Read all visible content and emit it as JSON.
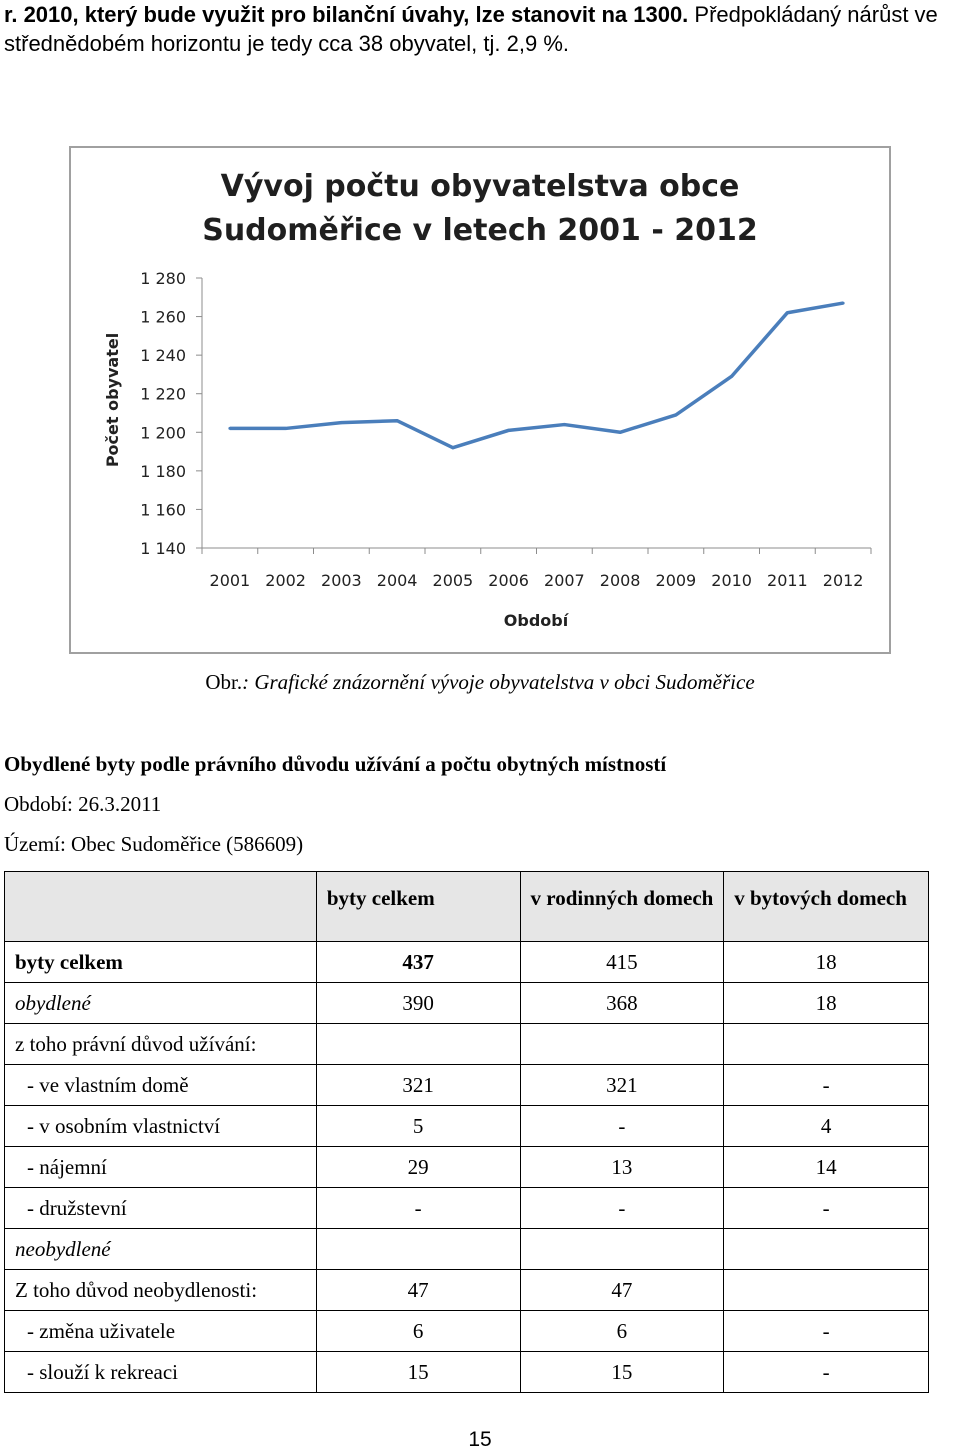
{
  "intro": {
    "line1_bold": "r. 2010, který bude využit pro bilanční úvahy, lze stanovit na 1300.",
    "line1_rest": " Předpokládaný nárůst ve",
    "line2": "střednědobém horizontu je tedy cca 38 obyvatel, tj. 2,9 %."
  },
  "chart_data": {
    "type": "line",
    "title_line1": "Vývoj počtu obyvatelstva obce",
    "title_line2": "Sudoměřice v letech 2001 - 2012",
    "xlabel": "Období",
    "ylabel": "Počet obyvatel",
    "categories": [
      "2001",
      "2002",
      "2003",
      "2004",
      "2005",
      "2006",
      "2007",
      "2008",
      "2009",
      "2010",
      "2011",
      "2012"
    ],
    "values": [
      1202,
      1202,
      1205,
      1206,
      1192,
      1201,
      1204,
      1200,
      1209,
      1229,
      1262,
      1267
    ],
    "ylim": [
      1140,
      1280
    ],
    "yticks": [
      "1 140",
      "1 160",
      "1 180",
      "1 200",
      "1 220",
      "1 240",
      "1 260",
      "1 280"
    ],
    "ytick_values": [
      1140,
      1160,
      1180,
      1200,
      1220,
      1240,
      1260,
      1280
    ],
    "line_color": "#4a7ebb",
    "grid": false
  },
  "caption": {
    "prefix": "Obr.",
    "text": ": Grafické znázornění vývoje obyvatelstva v obci Sudoměřice"
  },
  "section": {
    "title": "Obydlené byty podle právního důvodu užívání a počtu obytných místností",
    "period": "Období: 26.3.2011",
    "territory": "Území: Obec Sudoměřice (586609)"
  },
  "table": {
    "headers": [
      "",
      "byty celkem",
      "v rodinných domech",
      "v bytových domech"
    ],
    "rows": [
      {
        "label": "byty celkem",
        "c1": "437",
        "c2": "415",
        "c3": "18"
      },
      {
        "label": "obydlené",
        "c1": "390",
        "c2": "368",
        "c3": "18"
      },
      {
        "label": "z toho právní důvod užívání:",
        "c1": "",
        "c2": "",
        "c3": ""
      },
      {
        "label": "- ve vlastním domě",
        "c1": "321",
        "c2": "321",
        "c3": "-"
      },
      {
        "label": "- v osobním vlastnictví",
        "c1": "5",
        "c2": "-",
        "c3": "4"
      },
      {
        "label": "- nájemní",
        "c1": "29",
        "c2": "13",
        "c3": "14"
      },
      {
        "label": "- družstevní",
        "c1": "-",
        "c2": "-",
        "c3": "-"
      },
      {
        "label": "neobydlené",
        "c1": "",
        "c2": "",
        "c3": ""
      },
      {
        "label": "Z toho důvod neobydlenosti:",
        "c1": "47",
        "c2": "47",
        "c3": ""
      },
      {
        "label": "- změna uživatele",
        "c1": "6",
        "c2": "6",
        "c3": "-"
      },
      {
        "label": "- slouží k rekreaci",
        "c1": "15",
        "c2": "15",
        "c3": "-"
      }
    ]
  },
  "page_number": "15"
}
